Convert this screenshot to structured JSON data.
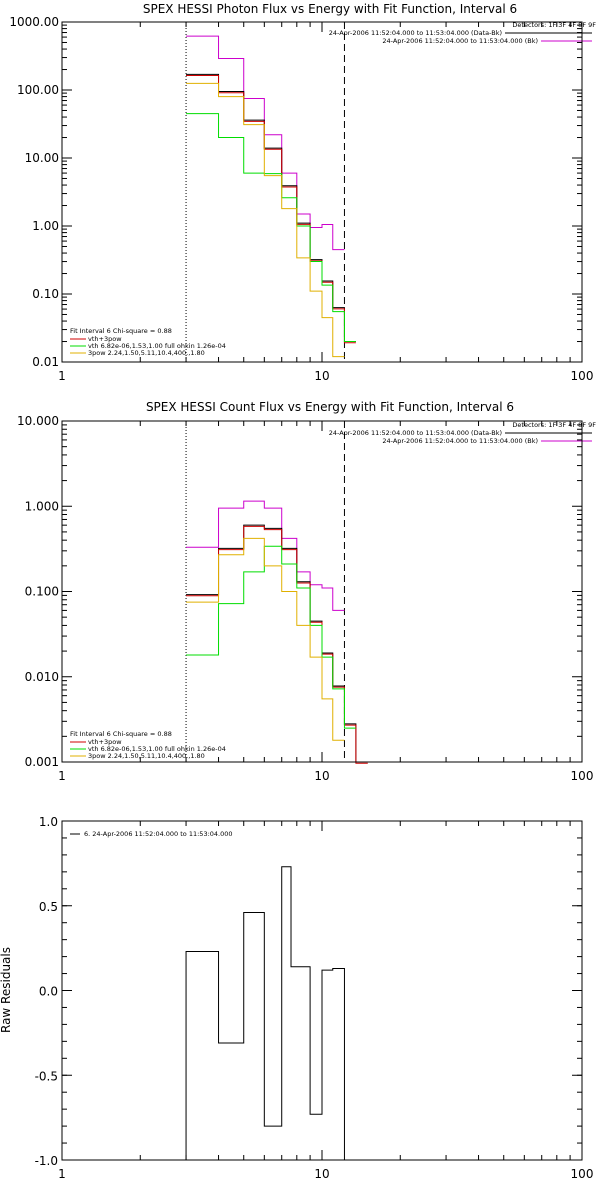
{
  "colors": {
    "total": "#000000",
    "total_inner": "#d00000",
    "vth_plus_3pow": "#d00000",
    "vth": "#00dd00",
    "pow3": "#e0b000",
    "data": "#cc00cc",
    "bk": "#cc00cc"
  },
  "chart_data": [
    {
      "type": "line",
      "step": true,
      "title": "SPEX HESSI Photon Flux vs Energy with Fit Function, Interval 6",
      "xscale": "log",
      "yscale": "log",
      "xlim": [
        1,
        100
      ],
      "ylim": [
        0.01,
        1000
      ],
      "xticks": [
        "1",
        "10",
        "100"
      ],
      "yticks": [
        "1000.00",
        "100.00",
        "10.00",
        "1.00",
        "0.10",
        "0.01"
      ],
      "vlines": [
        {
          "x": 3.0,
          "style": "dotted"
        },
        {
          "x": 12.2,
          "style": "dashed"
        }
      ],
      "edges": [
        3.0,
        4.0,
        5.0,
        6.0,
        7.0,
        8.0,
        9.0,
        10.0,
        11.0,
        12.2,
        13.5
      ],
      "series": [
        {
          "values": [
            620,
            290,
            75,
            22,
            6.0,
            1.5,
            0.95,
            1.05,
            0.45,
            null
          ]
        },
        {
          "values": [
            170,
            95,
            36,
            14,
            3.9,
            1.1,
            0.32,
            0.155,
            0.063,
            0.02
          ]
        },
        {
          "values": [
            45,
            20,
            6.0,
            5.9,
            2.6,
            1.0,
            0.3,
            0.135,
            0.055,
            0.02
          ]
        },
        {
          "values": [
            125,
            80,
            31,
            5.5,
            1.8,
            0.34,
            0.11,
            0.045,
            0.012,
            null
          ]
        }
      ],
      "legend_right": {
        "header": "Detectors: 1F 3F 4F 8F 9F",
        "entries": [
          "24-Apr-2006 11:52:04.000 to 11:53:04.000 (Data-Bk)",
          "24-Apr-2006 11:52:04.000 to 11:53:04.000 (Bk)"
        ]
      },
      "legend_left": {
        "header": "Fit Interval 6   Chi-square = 0.88",
        "entries": [
          "vth+3pow",
          "vth 6.82e-06,1.53,1.00  full ohkin 1.26e-04",
          "3pow 2.24,1.50,5.11,10.4,400.,1.80"
        ]
      }
    },
    {
      "type": "line",
      "step": true,
      "title": "SPEX HESSI Count Flux vs Energy with Fit Function, Interval 6",
      "xscale": "log",
      "yscale": "log",
      "xlim": [
        1,
        100
      ],
      "ylim": [
        0.001,
        10
      ],
      "xticks": [
        "1",
        "10",
        "100"
      ],
      "yticks": [
        "10.000",
        "1.000",
        "0.100",
        "0.010",
        "0.001"
      ],
      "vlines": [
        {
          "x": 3.0,
          "style": "dotted"
        },
        {
          "x": 12.2,
          "style": "dashed"
        }
      ],
      "edges": [
        3.0,
        4.0,
        5.0,
        6.0,
        7.0,
        8.0,
        9.0,
        10.0,
        11.0,
        12.2,
        13.5,
        15.0
      ],
      "series": [
        {
          "values": [
            0.33,
            0.95,
            1.15,
            0.95,
            0.42,
            0.17,
            0.12,
            0.11,
            0.06,
            null,
            null
          ]
        },
        {
          "values": [
            0.092,
            0.32,
            0.6,
            0.55,
            0.32,
            0.13,
            0.045,
            0.019,
            0.0078,
            0.0028,
            0.001
          ]
        },
        {
          "values": [
            0.018,
            0.072,
            0.17,
            0.34,
            0.21,
            0.11,
            0.04,
            0.017,
            0.0072,
            0.0025,
            null
          ]
        },
        {
          "values": [
            0.075,
            0.27,
            0.42,
            0.2,
            0.1,
            0.04,
            0.017,
            0.0055,
            0.0018,
            null,
            null
          ]
        }
      ],
      "legend_right": {
        "header": "Detectors: 1F 3F 4F 8F 9F",
        "entries": [
          "24-Apr-2006 11:52:04.000 to 11:53:04.000 (Data-Bk)",
          "24-Apr-2006 11:52:04.000 to 11:53:04.000 (Bk)"
        ]
      },
      "legend_left": {
        "header": "Fit Interval 6   Chi-square = 0.88",
        "entries": [
          "vth+3pow",
          "vth 6.82e-06,1.53,1.00  full ohkin 1.26e-04",
          "3pow 2.24,1.50,5.11,10.4,400.,1.80"
        ]
      }
    },
    {
      "type": "line",
      "step": true,
      "title": "",
      "ylabel": "Raw Residuals",
      "xscale": "log",
      "yscale": "linear",
      "xlim": [
        1,
        100
      ],
      "ylim": [
        -1.0,
        1.0
      ],
      "xticks": [
        "1",
        "10",
        "100"
      ],
      "yticks": [
        "1.0",
        "0.5",
        "0.0",
        "-0.5",
        "-1.0"
      ],
      "edges": [
        3.0,
        4.0,
        5.0,
        6.0,
        7.0,
        7.6,
        9.0,
        10.0,
        11.0,
        12.2
      ],
      "series": [
        {
          "name": "6. 24-Apr-2006 11:52:04.000 to 11:53:04.000",
          "values": [
            0.23,
            -0.31,
            0.46,
            -0.8,
            0.73,
            0.14,
            -0.73,
            0.12,
            0.13
          ]
        }
      ]
    }
  ]
}
